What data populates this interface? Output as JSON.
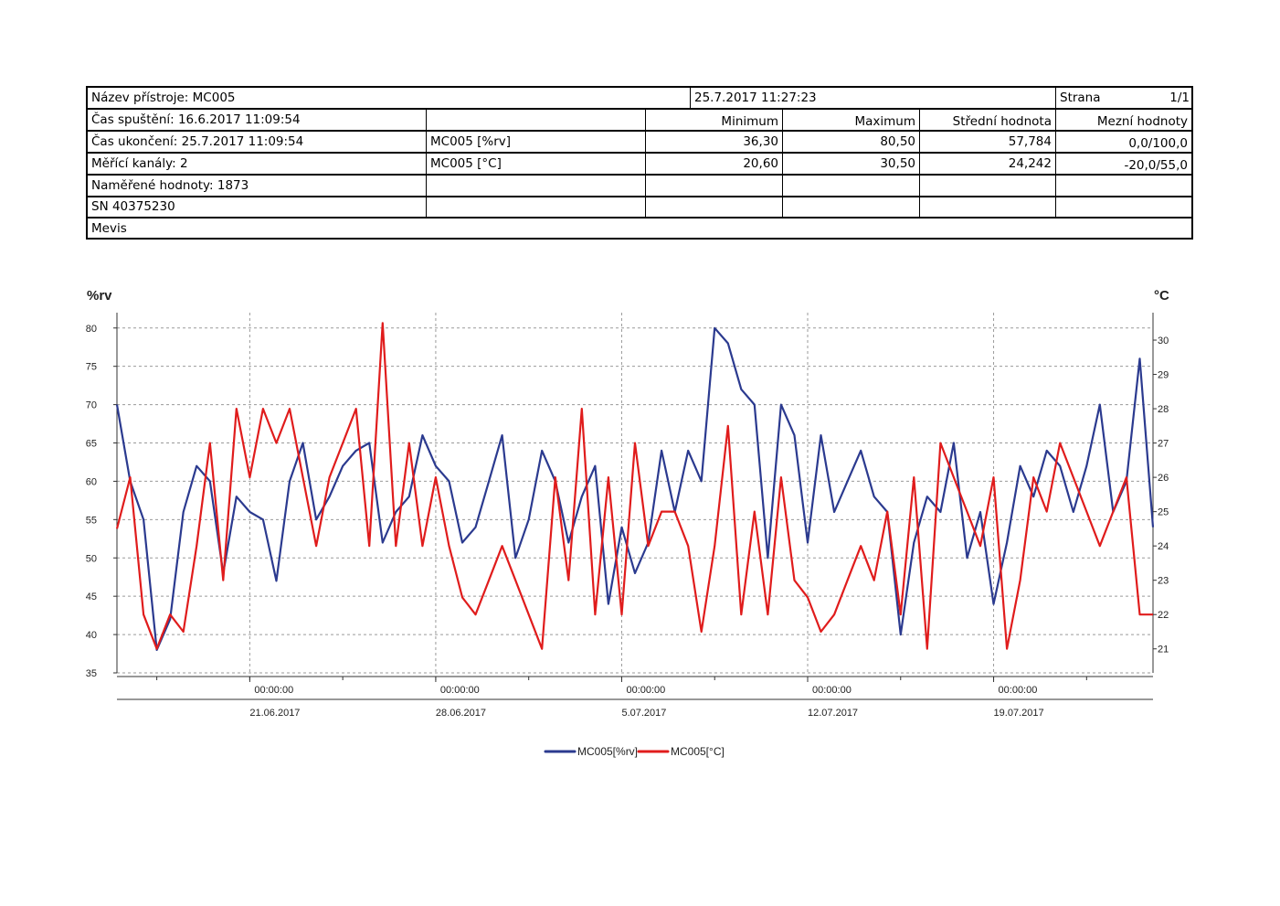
{
  "header": {
    "device": "Název přístroje: MC005",
    "timestamp": "25.7.2017 11:27:23",
    "page_label": "Strana",
    "page_value": "1/1",
    "start": "Čas spuštění: 16.6.2017 11:09:54",
    "end": "Čas ukončení: 25.7.2017 11:09:54",
    "channels": "Měřící kanály: 2",
    "measured": "Naměřené hodnoty: 1873",
    "serial": "SN 40375230",
    "company": "Mevis",
    "col_min": "Minimum",
    "col_max": "Maximum",
    "col_mean": "Střední hodnota",
    "col_limits": "Mezní hodnoty",
    "rows": [
      {
        "name": "MC005 [%rv]",
        "min": "36,30",
        "max": "80,50",
        "mean": "57,784",
        "limits": "0,0/100,0"
      },
      {
        "name": "MC005 [°C]",
        "min": "20,60",
        "max": "30,50",
        "mean": "24,242",
        "limits": "-20,0/55,0"
      }
    ]
  },
  "chart_data": {
    "type": "line",
    "title": "",
    "ylabel": "%rv",
    "y2label": "°C",
    "ylim": [
      35,
      82
    ],
    "y2lim": [
      20.3,
      30.8
    ],
    "y_ticks": [
      35,
      40,
      45,
      50,
      55,
      60,
      65,
      70,
      75,
      80
    ],
    "y2_ticks": [
      21,
      22,
      23,
      24,
      25,
      26,
      27,
      28,
      29,
      30
    ],
    "x_range_days": [
      0,
      39
    ],
    "x_ticks": [
      {
        "day": 5,
        "time": "00:00:00",
        "date": "21.06.2017"
      },
      {
        "day": 12,
        "time": "00:00:00",
        "date": "28.06.2017"
      },
      {
        "day": 19,
        "time": "00:00:00",
        "date": "5.07.2017"
      },
      {
        "day": 26,
        "time": "00:00:00",
        "date": "12.07.2017"
      },
      {
        "day": 33,
        "time": "00:00:00",
        "date": "19.07.2017"
      }
    ],
    "series": [
      {
        "name": "MC005[%rv]",
        "axis": "left",
        "color": "#2b3a8f",
        "x": [
          0,
          0.5,
          1,
          1.5,
          2,
          2.5,
          3,
          3.5,
          4,
          4.5,
          5,
          5.5,
          6,
          6.5,
          7,
          7.5,
          8,
          8.5,
          9,
          9.5,
          10,
          10.5,
          11,
          11.5,
          12,
          12.5,
          13,
          13.5,
          14,
          14.5,
          15,
          15.5,
          16,
          16.5,
          17,
          17.5,
          18,
          18.5,
          19,
          19.5,
          20,
          20.5,
          21,
          21.5,
          22,
          22.5,
          23,
          23.5,
          24,
          24.5,
          25,
          25.5,
          26,
          26.5,
          27,
          27.5,
          28,
          28.5,
          29,
          29.5,
          30,
          30.5,
          31,
          31.5,
          32,
          32.5,
          33,
          33.5,
          34,
          34.5,
          35,
          35.5,
          36,
          36.5,
          37,
          37.5,
          38,
          38.5,
          39
        ],
        "values": [
          70,
          60,
          55,
          38,
          42,
          56,
          62,
          60,
          48,
          58,
          56,
          55,
          47,
          60,
          65,
          55,
          58,
          62,
          64,
          65,
          52,
          56,
          58,
          66,
          62,
          60,
          52,
          54,
          60,
          66,
          50,
          55,
          64,
          60,
          52,
          58,
          62,
          44,
          54,
          48,
          52,
          64,
          56,
          64,
          60,
          80,
          78,
          72,
          70,
          50,
          70,
          66,
          52,
          66,
          56,
          60,
          64,
          58,
          56,
          40,
          52,
          58,
          56,
          65,
          50,
          56,
          44,
          52,
          62,
          58,
          64,
          62,
          56,
          62,
          70,
          56,
          60,
          76,
          54
        ]
      },
      {
        "name": "MC005[°C]",
        "axis": "right",
        "color": "#e01c1c",
        "x": [
          0,
          0.5,
          1,
          1.5,
          2,
          2.5,
          3,
          3.5,
          4,
          4.5,
          5,
          5.5,
          6,
          6.5,
          7,
          7.5,
          8,
          8.5,
          9,
          9.5,
          10,
          10.5,
          11,
          11.5,
          12,
          12.5,
          13,
          13.5,
          14,
          14.5,
          15,
          15.5,
          16,
          16.5,
          17,
          17.5,
          18,
          18.5,
          19,
          19.5,
          20,
          20.5,
          21,
          21.5,
          22,
          22.5,
          23,
          23.5,
          24,
          24.5,
          25,
          25.5,
          26,
          26.5,
          27,
          27.5,
          28,
          28.5,
          29,
          29.5,
          30,
          30.5,
          31,
          31.5,
          32,
          32.5,
          33,
          33.5,
          34,
          34.5,
          35,
          35.5,
          36,
          36.5,
          37,
          37.5,
          38,
          38.5,
          39
        ],
        "values": [
          24.5,
          26,
          22,
          21,
          22,
          21.5,
          24,
          27,
          23,
          28,
          26,
          28,
          27,
          28,
          26,
          24,
          26,
          27,
          28,
          24,
          30.5,
          24,
          27,
          24,
          26,
          24,
          22.5,
          22,
          23,
          24,
          23,
          22,
          21,
          26,
          23,
          28,
          22,
          26,
          22,
          27,
          24,
          25,
          25,
          24,
          21.5,
          24,
          27.5,
          22,
          25,
          22,
          26,
          23,
          22.5,
          21.5,
          22,
          23,
          24,
          23,
          25,
          22,
          26,
          21,
          27,
          26,
          25,
          24,
          26,
          21,
          23,
          26,
          25,
          27,
          26,
          25,
          24,
          25,
          26,
          22,
          22
        ]
      }
    ],
    "legend_position": "bottom"
  }
}
